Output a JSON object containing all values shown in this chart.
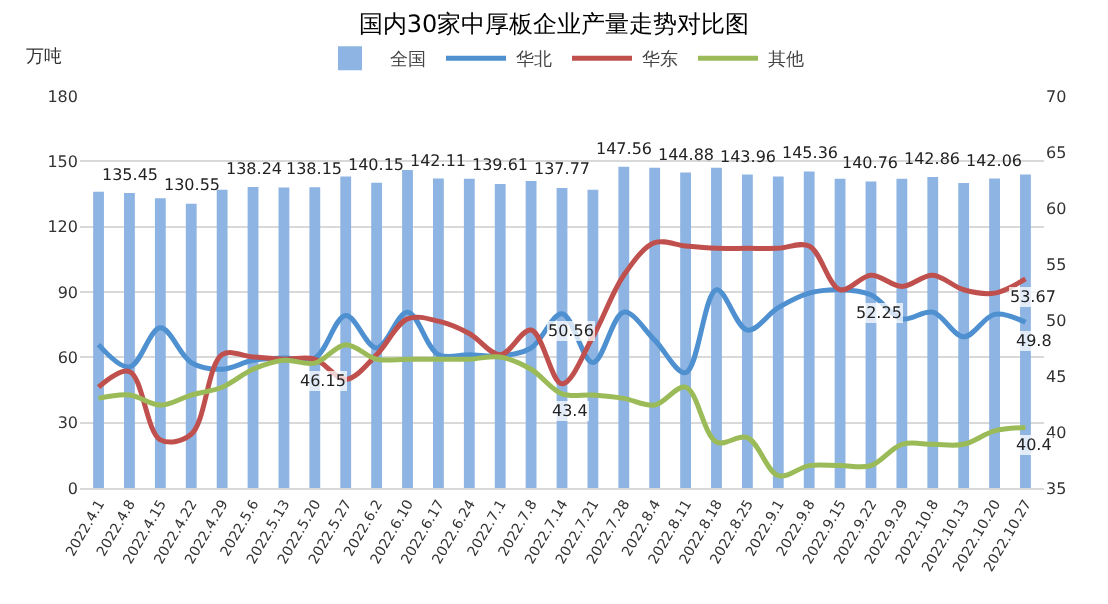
{
  "chart_data": {
    "type": "bar",
    "title": "国内30家中厚板企业产量走势对比图",
    "ylabel": "万吨",
    "categories": [
      "2022.4.1",
      "2022.4.8",
      "2022.4.15",
      "2022.4.22",
      "2022.4.29",
      "2022.5.6",
      "2022.5.13",
      "2022.5.20",
      "2022.5.27",
      "2022.6.2",
      "2022.6.10",
      "2022.6.17",
      "2022.6.24",
      "2022.7.1",
      "2022.7.8",
      "2022.7.14",
      "2022.7.21",
      "2022.7.28",
      "2022.8.4",
      "2022.8.11",
      "2022.8.18",
      "2022.8.25",
      "2022.9.1",
      "2022.9.8",
      "2022.9.15",
      "2022.9.22",
      "2022.9.29",
      "2022.10.8",
      "2022.10.13",
      "2022.10.20",
      "2022.10.27"
    ],
    "series": [
      {
        "name": "全国",
        "color": "#8db4e2",
        "values": [
          136,
          135.45,
          133,
          130.55,
          137,
          138.24,
          138,
          138.15,
          143,
          140.15,
          146,
          142.11,
          142,
          139.61,
          141,
          137.77,
          137,
          147.56,
          147,
          144.88,
          147,
          143.96,
          143,
          145.36,
          142,
          140.76,
          142,
          142.86,
          140,
          142.06,
          144
        ],
        "value_labels": [
          null,
          "135.45",
          null,
          "130.55",
          null,
          "138.24",
          null,
          "138.15",
          null,
          "140.15",
          null,
          "142.11",
          null,
          "139.61",
          null,
          "137.77",
          null,
          "147.56",
          null,
          "144.88",
          null,
          "143.96",
          null,
          "145.36",
          null,
          "140.76",
          null,
          "142.86",
          null,
          "142.06",
          null
        ]
      },
      {
        "name": "华北",
        "type": "line",
        "axis": "y2",
        "color": "#4f90d0",
        "values": [
          47.8,
          45.8,
          49.3,
          46.2,
          45.6,
          46.4,
          46.6,
          46.6,
          50.4,
          47.5,
          50.7,
          46.9,
          46.9,
          46.8,
          47.5,
          50.56,
          46.2,
          50.7,
          48.2,
          45.3,
          52.7,
          49.1,
          51.1,
          52.4,
          52.7,
          52.25,
          50.1,
          50.7,
          48.5,
          50.5,
          49.8
        ],
        "value_labels": [
          null,
          null,
          null,
          null,
          null,
          null,
          null,
          null,
          null,
          null,
          null,
          null,
          null,
          null,
          null,
          "50.56",
          null,
          null,
          null,
          null,
          null,
          null,
          null,
          null,
          null,
          "52.25",
          null,
          null,
          null,
          null,
          "49.8"
        ]
      },
      {
        "name": "华东",
        "type": "line",
        "axis": "y2",
        "color": "#c0504d",
        "values": [
          44,
          45.4,
          39.3,
          39.8,
          46.9,
          46.7,
          46.5,
          46.5,
          44.7,
          46.9,
          50.1,
          49.9,
          48.8,
          46.9,
          49.1,
          44.3,
          48.5,
          54,
          56.9,
          56.6,
          56.4,
          56.4,
          56.4,
          56.6,
          52.7,
          54,
          53,
          54,
          52.7,
          52.4,
          53.67
        ],
        "value_labels": [
          null,
          null,
          null,
          null,
          null,
          null,
          null,
          null,
          null,
          null,
          null,
          null,
          null,
          null,
          null,
          null,
          null,
          null,
          null,
          null,
          null,
          null,
          null,
          null,
          null,
          null,
          null,
          null,
          null,
          null,
          "53.67"
        ]
      },
      {
        "name": "其他",
        "type": "line",
        "axis": "y2",
        "color": "#9bbb59",
        "values": [
          43,
          43.3,
          42.4,
          43.3,
          44,
          45.6,
          46.4,
          46.15,
          47.8,
          46.5,
          46.5,
          46.5,
          46.5,
          46.7,
          45.6,
          43.4,
          43.3,
          43,
          42.4,
          44,
          39.1,
          39.5,
          36.1,
          37,
          37,
          37,
          38.9,
          38.9,
          38.9,
          40.1,
          40.4
        ],
        "value_labels": [
          null,
          null,
          null,
          null,
          null,
          null,
          null,
          "46.15",
          null,
          null,
          null,
          null,
          null,
          null,
          null,
          "43.4",
          null,
          null,
          null,
          null,
          null,
          null,
          null,
          null,
          null,
          null,
          null,
          null,
          null,
          null,
          "40.4"
        ]
      }
    ],
    "ylim": [
      0,
      180
    ],
    "yticks": [
      0,
      30,
      60,
      90,
      120,
      150,
      180
    ],
    "y2lim": [
      35,
      70
    ],
    "y2ticks": [
      35,
      40,
      45,
      50,
      55,
      60,
      65,
      70
    ],
    "grid": "y",
    "legend": "top",
    "marker": "none"
  }
}
